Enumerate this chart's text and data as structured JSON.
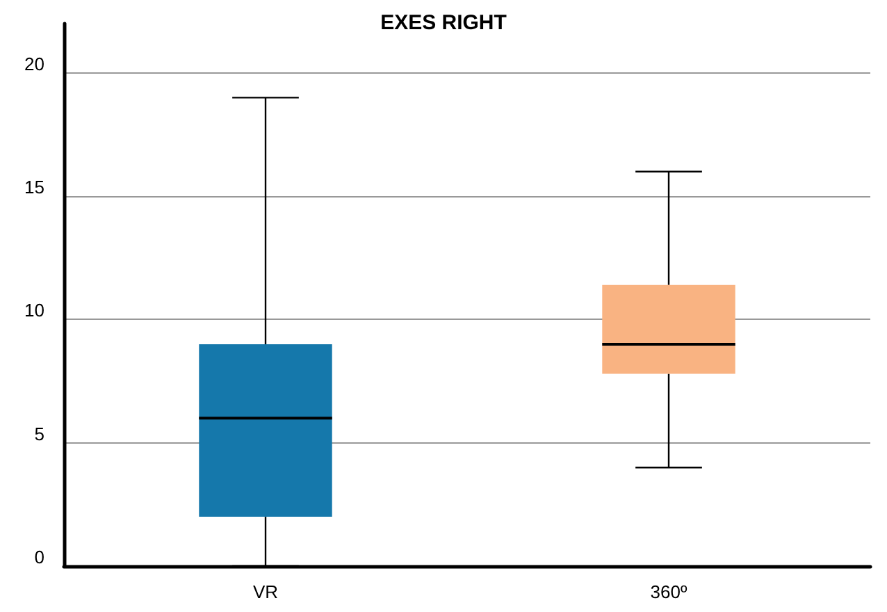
{
  "chart_data": {
    "type": "box",
    "title": "EXES RIGHT",
    "categories": [
      "VR",
      "360º"
    ],
    "boxes": [
      {
        "low": 0,
        "q1": 2,
        "median": 6,
        "q3": 9,
        "high": 19
      },
      {
        "low": 4,
        "q1": 7.8,
        "median": 9,
        "q3": 11.4,
        "high": 16
      }
    ],
    "colors": [
      "#1578ab",
      "#f9b382"
    ],
    "ylim": [
      0,
      22
    ],
    "yticks": [
      0,
      5,
      10,
      15,
      20
    ],
    "grid": "y"
  }
}
